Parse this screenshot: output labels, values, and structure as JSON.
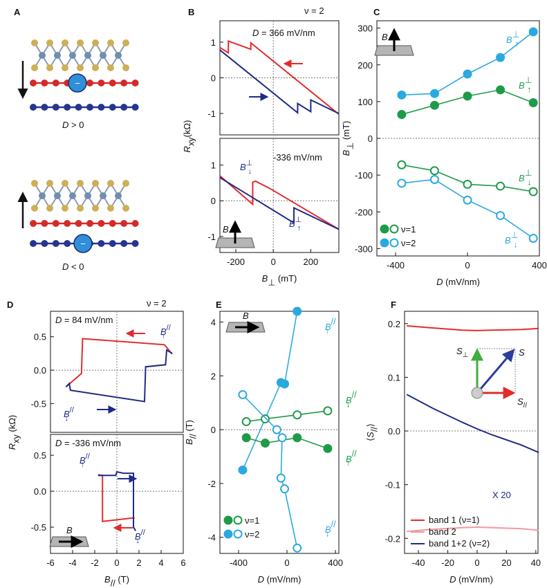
{
  "panel_a": {
    "label": "A",
    "charge": "−",
    "captions": [
      [
        {
          "t": "D",
          "i": true
        },
        {
          "t": " > 0"
        }
      ],
      [
        {
          "t": "D",
          "i": true
        },
        {
          "t": " < 0"
        }
      ]
    ]
  },
  "chart_data": [
    {
      "type": "line",
      "panel": "B",
      "annotations": [
        [
          {
            "t": "ν = 2"
          }
        ],
        [
          {
            "t": "D",
            "i": true
          },
          {
            "t": " = 366 mV/nm"
          }
        ]
      ],
      "ylabel": [
        {
          "t": "R",
          "i": true
        },
        {
          "t": "xy",
          "sub": true
        },
        {
          "t": "(kΩ)"
        }
      ],
      "xlim": [
        -285,
        350
      ],
      "ylim": [
        -1.6,
        1.6
      ],
      "yticks": [
        -1,
        0,
        1
      ],
      "series": [
        {
          "color": "#e22b2b",
          "x": [
            -285,
            -240,
            -240,
            -120,
            -120,
            350
          ],
          "values": [
            0.85,
            0.7,
            1.03,
            0.8,
            0.98,
            -1.02
          ]
        },
        {
          "color": "#1d2a86",
          "x": [
            -285,
            130,
            130,
            200,
            200,
            350
          ],
          "values": [
            0.78,
            -0.98,
            -0.72,
            -0.95,
            -0.62,
            -1.0
          ]
        }
      ]
    },
    {
      "type": "line",
      "annotations": [
        [
          {
            "t": "-336 mV/nm"
          }
        ],
        [
          {
            "t": "B",
            "i": true
          },
          {
            "t": "⊥",
            "sup": true
          },
          {
            "t": "↓",
            "sub": true
          }
        ],
        [
          {
            "t": "B",
            "i": true
          },
          {
            "t": "⊥",
            "sup": true
          },
          {
            "t": "↑",
            "sub": true
          }
        ]
      ],
      "inset_label": "B",
      "xlabel": [
        {
          "t": "B",
          "i": true
        },
        {
          "t": "⊥",
          "sub": true
        },
        {
          "t": " (mT)"
        }
      ],
      "xlim": [
        -285,
        350
      ],
      "ylim": [
        -1.45,
        1.75
      ],
      "xticks": [
        -200,
        0,
        200
      ],
      "yticks": [
        -1,
        0,
        1
      ],
      "series": [
        {
          "color": "#e22b2b",
          "x": [
            -285,
            -110,
            -110,
            -95,
            -20,
            350
          ],
          "values": [
            0.7,
            -0.1,
            0.52,
            0.55,
            0.35,
            -0.8
          ]
        },
        {
          "color": "#1d2a86",
          "x": [
            -285,
            110,
            110,
            350
          ],
          "values": [
            0.65,
            -0.62,
            -0.2,
            -0.8
          ]
        }
      ]
    },
    {
      "type": "scatter",
      "panel": "C",
      "inset_label": "B",
      "xlabel": [
        {
          "t": "D",
          "i": true
        },
        {
          "t": " (mV/nm)"
        }
      ],
      "ylabel": [
        {
          "t": "B",
          "i": true
        },
        {
          "t": "⊥",
          "sub": true
        },
        {
          "t": " (mT)"
        }
      ],
      "xlim": [
        -504,
        400
      ],
      "ylim": [
        -320,
        320
      ],
      "xticks": [
        -400,
        0,
        400
      ],
      "yticks": [
        -300,
        -200,
        -100,
        0,
        100,
        200,
        300
      ],
      "legend": [
        {
          "name": "ν=1",
          "color": "#1e9b48"
        },
        {
          "name": "ν=2",
          "color": "#2aa9e0"
        }
      ],
      "series": [
        {
          "color": "#2aa9e0",
          "filled": true,
          "x": [
            -366,
            -183,
            0,
            183,
            366
          ],
          "values": [
            118,
            122,
            175,
            220,
            290
          ],
          "label": [
            {
              "t": "B",
              "i": true
            },
            {
              "t": "⊥",
              "sup": true
            },
            {
              "t": "↑",
              "sub": true
            }
          ]
        },
        {
          "color": "#1e9b48",
          "filled": true,
          "x": [
            -366,
            -183,
            0,
            183,
            366
          ],
          "values": [
            65,
            90,
            115,
            132,
            97
          ],
          "label": [
            {
              "t": "B",
              "i": true
            },
            {
              "t": "⊥",
              "sup": true
            },
            {
              "t": "↑",
              "sub": true
            }
          ]
        },
        {
          "color": "#1e9b48",
          "filled": false,
          "x": [
            -366,
            -183,
            0,
            183,
            366
          ],
          "values": [
            -72,
            -88,
            -125,
            -130,
            -145
          ],
          "label": [
            {
              "t": "B",
              "i": true
            },
            {
              "t": "⊥",
              "sup": true
            },
            {
              "t": "↓",
              "sub": true
            }
          ]
        },
        {
          "color": "#2aa9e0",
          "filled": false,
          "x": [
            -366,
            -183,
            0,
            183,
            366
          ],
          "values": [
            -122,
            -112,
            -168,
            -210,
            -272
          ],
          "label": [
            {
              "t": "B",
              "i": true
            },
            {
              "t": "⊥",
              "sup": true
            },
            {
              "t": "↓",
              "sub": true
            }
          ]
        }
      ]
    },
    {
      "type": "line",
      "panel": "D",
      "annotations": [
        [
          {
            "t": "ν = 2"
          }
        ],
        [
          {
            "t": "D",
            "i": true
          },
          {
            "t": " = 84 mV/nm"
          }
        ],
        [
          {
            "t": "B",
            "i": true
          },
          {
            "t": "//",
            "sup": true
          },
          {
            "t": "↑",
            "sub": true
          }
        ],
        [
          {
            "t": "B",
            "i": true
          },
          {
            "t": "//",
            "sup": true
          },
          {
            "t": "↓",
            "sub": true
          }
        ]
      ],
      "ylabel": [
        {
          "t": "R",
          "i": true
        },
        {
          "t": "xy",
          "sub": true
        },
        {
          "t": " (kΩ)"
        }
      ],
      "xlim": [
        -6,
        6
      ],
      "ylim": [
        -0.93,
        0.88
      ],
      "yticks": [
        {
          "value": -0.5,
          "label": "-0.5"
        },
        {
          "value": 0,
          "label": "0.0"
        },
        {
          "value": 0.5,
          "label": "0.5"
        }
      ],
      "series": [
        {
          "color": "#e22b2b",
          "x": [
            5.0,
            4.3,
            -3.1,
            -3.2,
            -4.6
          ],
          "values": [
            0.24,
            0.38,
            0.47,
            -0.05,
            -0.25
          ]
        },
        {
          "color": "#1d2a86",
          "x": [
            -4.6,
            -4.3,
            -4.2,
            2.5,
            2.6,
            4.4,
            4.5,
            5.0
          ],
          "values": [
            -0.25,
            -0.2,
            -0.3,
            -0.47,
            0.05,
            0.08,
            0.3,
            0.25
          ]
        }
      ]
    },
    {
      "type": "line",
      "inset_label": "B",
      "annotations": [
        [
          {
            "t": "D",
            "i": true
          },
          {
            "t": " = -336 mV/nm"
          }
        ],
        [
          {
            "t": "B",
            "i": true
          },
          {
            "t": "//",
            "sup": true
          },
          {
            "t": "↑",
            "sub": true
          }
        ],
        [
          {
            "t": "B",
            "i": true
          },
          {
            "t": "//",
            "sup": true
          },
          {
            "t": "↓",
            "sub": true
          }
        ]
      ],
      "xlabel": [
        {
          "t": "B",
          "i": true
        },
        {
          "t": "//",
          "sub": true
        },
        {
          "t": " (T)"
        }
      ],
      "xlim": [
        -6,
        6
      ],
      "ylim": [
        -0.865,
        0.79
      ],
      "xticks": [
        -6,
        -4,
        -2,
        0,
        2,
        4,
        6
      ],
      "yticks": [
        {
          "value": -0.5,
          "label": "-0.5"
        },
        {
          "value": 0,
          "label": "0.0"
        },
        {
          "value": 0.5,
          "label": "0.5"
        }
      ],
      "series": [
        {
          "color": "#e22b2b",
          "x": [
            1.6,
            1.5,
            -1.3,
            -1.3,
            -1.7
          ],
          "values": [
            -0.38,
            -0.37,
            -0.42,
            0.22,
            0.23
          ]
        },
        {
          "color": "#1d2a86",
          "x": [
            -1.7,
            -0.1,
            0,
            0.6,
            1.5,
            1.5,
            1.7
          ],
          "values": [
            0.22,
            0.22,
            0.27,
            0.25,
            0.25,
            -0.5,
            -0.55
          ]
        }
      ]
    },
    {
      "type": "scatter",
      "panel": "E",
      "inset_label": "B",
      "xlabel": [
        {
          "t": "D",
          "i": true
        },
        {
          "t": " (mV/nm)"
        }
      ],
      "ylabel": [
        {
          "t": "B",
          "i": true
        },
        {
          "t": "//",
          "sub": true
        },
        {
          "t": " (T)"
        }
      ],
      "xlim": [
        -554,
        428
      ],
      "ylim": [
        -4.6,
        4.4
      ],
      "xticks": [
        -400,
        0,
        400
      ],
      "yticks": [
        -4,
        -2,
        0,
        2,
        4
      ],
      "legend": [
        {
          "name": "ν=1",
          "color": "#1e9b48"
        },
        {
          "name": "ν=2",
          "color": "#2aa9e0"
        }
      ],
      "series": [
        {
          "color": "#2aa9e0",
          "filled": true,
          "x": [
            -366,
            -50,
            -20,
            84
          ],
          "values": [
            -1.5,
            1.75,
            1.7,
            4.4
          ],
          "label": [
            {
              "t": "B",
              "i": true
            },
            {
              "t": "//",
              "sup": true
            },
            {
              "t": "↑",
              "sub": true
            }
          ]
        },
        {
          "color": "#1e9b48",
          "filled": false,
          "x": [
            -336,
            -180,
            84,
            336
          ],
          "values": [
            0.3,
            0.4,
            0.55,
            0.7
          ],
          "label": [
            {
              "t": "B",
              "i": true
            },
            {
              "t": "//",
              "sup": true
            },
            {
              "t": "↓",
              "sub": true
            }
          ]
        },
        {
          "color": "#1e9b48",
          "filled": true,
          "x": [
            -336,
            -180,
            84,
            336
          ],
          "values": [
            -0.3,
            -0.5,
            -0.3,
            -0.7
          ],
          "label": [
            {
              "t": "B",
              "i": true
            },
            {
              "t": "//",
              "sup": true
            },
            {
              "t": "↑",
              "sub": true
            }
          ]
        },
        {
          "color": "#2aa9e0",
          "filled": false,
          "x": [
            -366,
            -84,
            -40,
            -50,
            -20,
            84
          ],
          "values": [
            1.3,
            0,
            -0.3,
            -1.8,
            -2.2,
            -4.4
          ],
          "label": [
            {
              "t": "B",
              "i": true
            },
            {
              "t": "//",
              "sup": true
            },
            {
              "t": "↓",
              "sub": true
            }
          ]
        }
      ]
    },
    {
      "type": "line",
      "panel": "F",
      "annotations": [
        [
          {
            "t": "X 20"
          }
        ]
      ],
      "inset_labels": [
        [
          {
            "t": "S",
            "i": true
          },
          {
            "t": "⊥",
            "sub": true
          }
        ],
        [
          {
            "t": "S",
            "i": true
          }
        ],
        [
          {
            "t": "S",
            "i": true
          },
          {
            "t": "//",
            "sub": true
          }
        ]
      ],
      "xlabel": [
        {
          "t": "D",
          "i": true
        },
        {
          "t": " (mV/nm)"
        }
      ],
      "ylabel": [
        {
          "t": "⟨"
        },
        {
          "t": "S",
          "i": true
        },
        {
          "t": "//",
          "sub": true
        },
        {
          "t": "⟩"
        }
      ],
      "xlim": [
        -49.5,
        41.5
      ],
      "ylim": [
        -0.228,
        0.223
      ],
      "xticks": [
        -40,
        -20,
        0,
        20,
        40
      ],
      "yticks": [
        {
          "value": -0.2,
          "label": "-0.2"
        },
        {
          "value": -0.1,
          "label": "-0.1"
        },
        {
          "value": 0,
          "label": "0.0"
        },
        {
          "value": 0.1,
          "label": "0.1"
        },
        {
          "value": 0.2,
          "label": "0.2"
        }
      ],
      "series": [
        {
          "name": "band 1 (ν=1)",
          "color": "#e22b2b",
          "x": [
            -48,
            -30,
            -10,
            0,
            10,
            30,
            42
          ],
          "values": [
            0.196,
            0.192,
            0.188,
            0.187,
            0.188,
            0.189,
            0.191
          ]
        },
        {
          "name": "band 2",
          "color": "#f09aa0",
          "x": [
            -48,
            -30,
            -10,
            0,
            10,
            30,
            42
          ],
          "values": [
            -0.187,
            -0.183,
            -0.18,
            -0.179,
            -0.18,
            -0.182,
            -0.185
          ]
        },
        {
          "name": "band 1+2 (ν=2)",
          "color": "#1d2a86",
          "x": [
            -48,
            -30,
            -10,
            0,
            10,
            30,
            42
          ],
          "values": [
            0.068,
            0.042,
            0.016,
            0.004,
            -0.007,
            -0.026,
            -0.04
          ]
        }
      ]
    }
  ]
}
